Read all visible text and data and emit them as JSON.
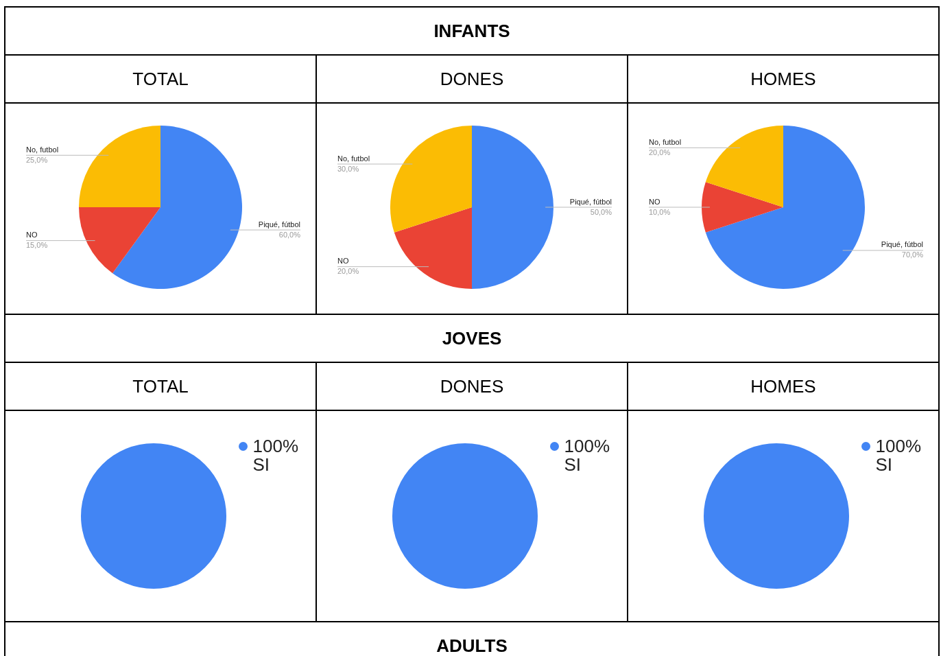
{
  "chart_data": [
    {
      "type": "other",
      "title": "INFANTS"
    },
    {
      "type": "pie",
      "title": "TOTAL",
      "categories": [
        "Piqué, fútbol",
        "NO",
        "No, futbol"
      ],
      "values": [
        60,
        15,
        25
      ],
      "colors": [
        "#4285f4",
        "#ea4335",
        "#fbbc04"
      ],
      "value_labels": [
        "60,0%",
        "15,0%",
        "25,0%"
      ]
    },
    {
      "type": "pie",
      "title": "DONES",
      "categories": [
        "Piqué, fútbol",
        "NO",
        "No, futbol"
      ],
      "values": [
        50,
        20,
        30
      ],
      "colors": [
        "#4285f4",
        "#ea4335",
        "#fbbc04"
      ],
      "value_labels": [
        "50,0%",
        "20,0%",
        "30,0%"
      ]
    },
    {
      "type": "pie",
      "title": "HOMES",
      "categories": [
        "Piqué, fútbol",
        "NO",
        "No, futbol"
      ],
      "values": [
        70,
        10,
        20
      ],
      "colors": [
        "#4285f4",
        "#ea4335",
        "#fbbc04"
      ],
      "value_labels": [
        "70,0%",
        "10,0%",
        "20,0%"
      ]
    },
    {
      "type": "other",
      "title": "JOVES"
    },
    {
      "type": "pie",
      "title": "TOTAL",
      "categories": [
        "SI"
      ],
      "values": [
        100
      ],
      "colors": [
        "#4285f4"
      ],
      "value_labels": [
        "100%"
      ],
      "legend": "top right"
    },
    {
      "type": "pie",
      "title": "DONES",
      "categories": [
        "SI"
      ],
      "values": [
        100
      ],
      "colors": [
        "#4285f4"
      ],
      "value_labels": [
        "100%"
      ],
      "legend": "top right"
    },
    {
      "type": "pie",
      "title": "HOMES",
      "categories": [
        "SI"
      ],
      "values": [
        100
      ],
      "colors": [
        "#4285f4"
      ],
      "value_labels": [
        "100%"
      ],
      "legend": "top right"
    },
    {
      "type": "other",
      "title": "ADULTS"
    }
  ]
}
